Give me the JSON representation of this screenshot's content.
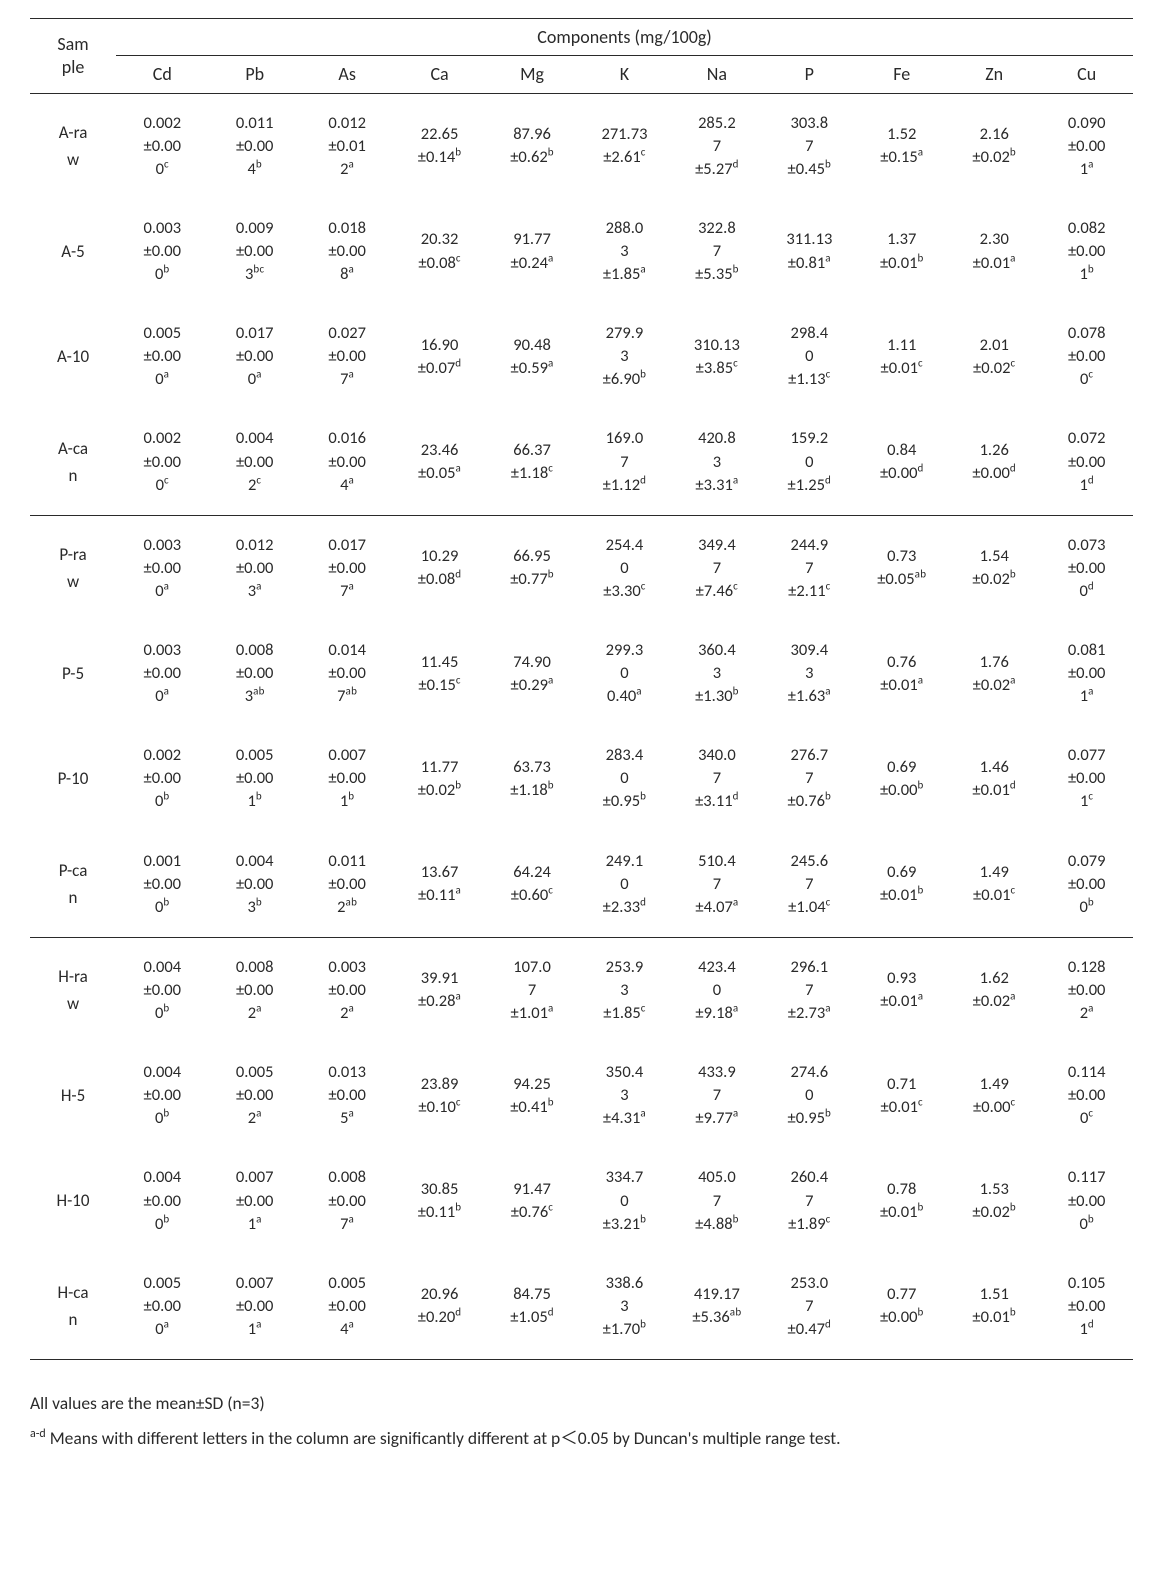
{
  "table": {
    "header": {
      "group_label": "Components (mg/100g)",
      "sample_label": "Sam\nple"
    },
    "columns": [
      "Cd",
      "Pb",
      "As",
      "Ca",
      "Mg",
      "K",
      "Na",
      "P",
      "Fe",
      "Zn",
      "Cu"
    ],
    "groups": [
      {
        "rows": [
          {
            "sample": "A-ra\nw",
            "cells": [
              {
                "v": "0.002",
                "e": "±0.00\n0",
                "s": "c"
              },
              {
                "v": "0.011",
                "e": "±0.00\n4",
                "s": "b"
              },
              {
                "v": "0.012",
                "e": "±0.01\n2",
                "s": "a"
              },
              {
                "v": "22.65",
                "e": "±0.14",
                "s": "b"
              },
              {
                "v": "87.96",
                "e": "±0.62",
                "s": "b"
              },
              {
                "v": "271.73",
                "e": "±2.61",
                "s": "c"
              },
              {
                "v": "285.2\n7",
                "e": "±5.27",
                "s": "d"
              },
              {
                "v": "303.8\n7",
                "e": "±0.45",
                "s": "b"
              },
              {
                "v": "1.52",
                "e": "±0.15",
                "s": "a"
              },
              {
                "v": "2.16",
                "e": "±0.02",
                "s": "b"
              },
              {
                "v": "0.090",
                "e": "±0.00\n1",
                "s": "a"
              }
            ]
          },
          {
            "sample": "A-5",
            "cells": [
              {
                "v": "0.003",
                "e": "±0.00\n0",
                "s": "b"
              },
              {
                "v": "0.009",
                "e": "±0.00\n3",
                "s": "bc"
              },
              {
                "v": "0.018",
                "e": "±0.00\n8",
                "s": "a"
              },
              {
                "v": "20.32",
                "e": "±0.08",
                "s": "c"
              },
              {
                "v": "91.77",
                "e": "±0.24",
                "s": "a"
              },
              {
                "v": "288.0\n3",
                "e": "±1.85",
                "s": "a"
              },
              {
                "v": "322.8\n7",
                "e": "±5.35",
                "s": "b"
              },
              {
                "v": "311.13",
                "e": "±0.81",
                "s": "a"
              },
              {
                "v": "1.37",
                "e": "±0.01",
                "s": "b"
              },
              {
                "v": "2.30",
                "e": "±0.01",
                "s": "a"
              },
              {
                "v": "0.082",
                "e": "±0.00\n1",
                "s": "b"
              }
            ]
          },
          {
            "sample": "A-10",
            "cells": [
              {
                "v": "0.005",
                "e": "±0.00\n0",
                "s": "a"
              },
              {
                "v": "0.017",
                "e": "±0.00\n0",
                "s": "a"
              },
              {
                "v": "0.027",
                "e": "±0.00\n7",
                "s": "a"
              },
              {
                "v": "16.90",
                "e": "±0.07",
                "s": "d"
              },
              {
                "v": "90.48",
                "e": "±0.59",
                "s": "a"
              },
              {
                "v": "279.9\n3",
                "e": "±6.90",
                "s": "b"
              },
              {
                "v": "310.13",
                "e": "±3.85",
                "s": "c"
              },
              {
                "v": "298.4\n0",
                "e": "±1.13",
                "s": "c"
              },
              {
                "v": "1.11",
                "e": "±0.01",
                "s": "c"
              },
              {
                "v": "2.01",
                "e": "±0.02",
                "s": "c"
              },
              {
                "v": "0.078",
                "e": "±0.00\n0",
                "s": "c"
              }
            ]
          },
          {
            "sample": "A-ca\nn",
            "cells": [
              {
                "v": "0.002",
                "e": "±0.00\n0",
                "s": "c"
              },
              {
                "v": "0.004",
                "e": "±0.00\n2",
                "s": "c"
              },
              {
                "v": "0.016",
                "e": "±0.00\n4",
                "s": "a"
              },
              {
                "v": "23.46",
                "e": "±0.05",
                "s": "a"
              },
              {
                "v": "66.37",
                "e": "±1.18",
                "s": "c"
              },
              {
                "v": "169.0\n7",
                "e": "±1.12",
                "s": "d"
              },
              {
                "v": "420.8\n3",
                "e": "±3.31",
                "s": "a"
              },
              {
                "v": "159.2\n0",
                "e": "±1.25",
                "s": "d"
              },
              {
                "v": "0.84",
                "e": "±0.00",
                "s": "d"
              },
              {
                "v": "1.26",
                "e": "±0.00",
                "s": "d"
              },
              {
                "v": "0.072",
                "e": "±0.00\n1",
                "s": "d"
              }
            ]
          }
        ]
      },
      {
        "rows": [
          {
            "sample": "P-ra\nw",
            "cells": [
              {
                "v": "0.003",
                "e": "±0.00\n0",
                "s": "a"
              },
              {
                "v": "0.012",
                "e": "±0.00\n3",
                "s": "a"
              },
              {
                "v": "0.017",
                "e": "±0.00\n7",
                "s": "a"
              },
              {
                "v": "10.29",
                "e": "±0.08",
                "s": "d"
              },
              {
                "v": "66.95",
                "e": "±0.77",
                "s": "b"
              },
              {
                "v": "254.4\n0",
                "e": "±3.30",
                "s": "c"
              },
              {
                "v": "349.4\n7",
                "e": "±7.46",
                "s": "c"
              },
              {
                "v": "244.9\n7",
                "e": "±2.11",
                "s": "c"
              },
              {
                "v": "0.73",
                "e": "±0.05",
                "s": "ab"
              },
              {
                "v": "1.54",
                "e": "±0.02",
                "s": "b"
              },
              {
                "v": "0.073",
                "e": "±0.00\n0",
                "s": "d"
              }
            ]
          },
          {
            "sample": "P-5",
            "cells": [
              {
                "v": "0.003",
                "e": "±0.00\n0",
                "s": "a"
              },
              {
                "v": "0.008",
                "e": "±0.00\n3",
                "s": "ab"
              },
              {
                "v": "0.014",
                "e": "±0.00\n7",
                "s": "ab"
              },
              {
                "v": "11.45",
                "e": "±0.15",
                "s": "c"
              },
              {
                "v": "74.90",
                "e": "±0.29",
                "s": "a"
              },
              {
                "v": "299.3\n0",
                "e": "0.40",
                "s": "a"
              },
              {
                "v": "360.4\n3",
                "e": "±1.30",
                "s": "b"
              },
              {
                "v": "309.4\n3",
                "e": "±1.63",
                "s": "a"
              },
              {
                "v": "0.76",
                "e": "±0.01",
                "s": "a"
              },
              {
                "v": "1.76",
                "e": "±0.02",
                "s": "a"
              },
              {
                "v": "0.081",
                "e": "±0.00\n1",
                "s": "a"
              }
            ]
          },
          {
            "sample": "P-10",
            "cells": [
              {
                "v": "0.002",
                "e": "±0.00\n0",
                "s": "b"
              },
              {
                "v": "0.005",
                "e": "±0.00\n1",
                "s": "b"
              },
              {
                "v": "0.007",
                "e": "±0.00\n1",
                "s": "b"
              },
              {
                "v": "11.77",
                "e": "±0.02",
                "s": "b"
              },
              {
                "v": "63.73",
                "e": "±1.18",
                "s": "b"
              },
              {
                "v": "283.4\n0",
                "e": "±0.95",
                "s": "b"
              },
              {
                "v": "340.0\n7",
                "e": "±3.11",
                "s": "d"
              },
              {
                "v": "276.7\n7",
                "e": "±0.76",
                "s": "b"
              },
              {
                "v": "0.69",
                "e": "±0.00",
                "s": "b"
              },
              {
                "v": "1.46",
                "e": "±0.01",
                "s": "d"
              },
              {
                "v": "0.077",
                "e": "±0.00\n1",
                "s": "c"
              }
            ]
          },
          {
            "sample": "P-ca\nn",
            "cells": [
              {
                "v": "0.001",
                "e": "±0.00\n0",
                "s": "b"
              },
              {
                "v": "0.004",
                "e": "±0.00\n3",
                "s": "b"
              },
              {
                "v": "0.011",
                "e": "±0.00\n2",
                "s": "ab"
              },
              {
                "v": "13.67",
                "e": "±0.11",
                "s": "a"
              },
              {
                "v": "64.24",
                "e": "±0.60",
                "s": "c"
              },
              {
                "v": "249.1\n0",
                "e": "±2.33",
                "s": "d"
              },
              {
                "v": "510.4\n7",
                "e": "±4.07",
                "s": "a"
              },
              {
                "v": "245.6\n7",
                "e": "±1.04",
                "s": "c"
              },
              {
                "v": "0.69",
                "e": "±0.01",
                "s": "b"
              },
              {
                "v": "1.49",
                "e": "±0.01",
                "s": "c"
              },
              {
                "v": "0.079",
                "e": "±0.00\n0",
                "s": "b"
              }
            ]
          }
        ]
      },
      {
        "rows": [
          {
            "sample": "H-ra\nw",
            "cells": [
              {
                "v": "0.004",
                "e": "±0.00\n0",
                "s": "b"
              },
              {
                "v": "0.008",
                "e": "±0.00\n2",
                "s": "a"
              },
              {
                "v": "0.003",
                "e": "±0.00\n2",
                "s": "a"
              },
              {
                "v": "39.91",
                "e": "±0.28",
                "s": "a"
              },
              {
                "v": "107.0\n7",
                "e": "±1.01",
                "s": "a"
              },
              {
                "v": "253.9\n3",
                "e": "±1.85",
                "s": "c"
              },
              {
                "v": "423.4\n0",
                "e": "±9.18",
                "s": "a"
              },
              {
                "v": "296.1\n7",
                "e": "±2.73",
                "s": "a"
              },
              {
                "v": "0.93",
                "e": "±0.01",
                "s": "a"
              },
              {
                "v": "1.62",
                "e": "±0.02",
                "s": "a"
              },
              {
                "v": "0.128",
                "e": "±0.00\n2",
                "s": "a"
              }
            ]
          },
          {
            "sample": "H-5",
            "cells": [
              {
                "v": "0.004",
                "e": "±0.00\n0",
                "s": "b"
              },
              {
                "v": "0.005",
                "e": "±0.00\n2",
                "s": "a"
              },
              {
                "v": "0.013",
                "e": "±0.00\n5",
                "s": "a"
              },
              {
                "v": "23.89",
                "e": "±0.10",
                "s": "c"
              },
              {
                "v": "94.25",
                "e": "±0.41",
                "s": "b"
              },
              {
                "v": "350.4\n3",
                "e": "±4.31",
                "s": "a"
              },
              {
                "v": "433.9\n7",
                "e": "±9.77",
                "s": "a"
              },
              {
                "v": "274.6\n0",
                "e": "±0.95",
                "s": "b"
              },
              {
                "v": "0.71",
                "e": "±0.01",
                "s": "c"
              },
              {
                "v": "1.49",
                "e": "±0.00",
                "s": "c"
              },
              {
                "v": "0.114",
                "e": "±0.00\n0",
                "s": "c"
              }
            ]
          },
          {
            "sample": "H-10",
            "cells": [
              {
                "v": "0.004",
                "e": "±0.00\n0",
                "s": "b"
              },
              {
                "v": "0.007",
                "e": "±0.00\n1",
                "s": "a"
              },
              {
                "v": "0.008",
                "e": "±0.00\n7",
                "s": "a"
              },
              {
                "v": "30.85",
                "e": "±0.11",
                "s": "b"
              },
              {
                "v": "91.47",
                "e": "±0.76",
                "s": "c"
              },
              {
                "v": "334.7\n0",
                "e": "±3.21",
                "s": "b"
              },
              {
                "v": "405.0\n7",
                "e": "±4.88",
                "s": "b"
              },
              {
                "v": "260.4\n7",
                "e": "±1.89",
                "s": "c"
              },
              {
                "v": "0.78",
                "e": "±0.01",
                "s": "b"
              },
              {
                "v": "1.53",
                "e": "±0.02",
                "s": "b"
              },
              {
                "v": "0.117",
                "e": "±0.00\n0",
                "s": "b"
              }
            ]
          },
          {
            "sample": "H-ca\nn",
            "cells": [
              {
                "v": "0.005",
                "e": "±0.00\n0",
                "s": "a"
              },
              {
                "v": "0.007",
                "e": "±0.00\n1",
                "s": "a"
              },
              {
                "v": "0.005",
                "e": "±0.00\n4",
                "s": "a"
              },
              {
                "v": "20.96",
                "e": "±0.20",
                "s": "d"
              },
              {
                "v": "84.75",
                "e": "±1.05",
                "s": "d"
              },
              {
                "v": "338.6\n3",
                "e": "±1.70",
                "s": "b"
              },
              {
                "v": "419.17",
                "e": "±5.36",
                "s": "ab"
              },
              {
                "v": "253.0\n7",
                "e": "±0.47",
                "s": "d"
              },
              {
                "v": "0.77",
                "e": "±0.00",
                "s": "b"
              },
              {
                "v": "1.51",
                "e": "±0.01",
                "s": "b"
              },
              {
                "v": "0.105",
                "e": "±0.00\n1",
                "s": "d"
              }
            ]
          }
        ]
      }
    ]
  },
  "footnotes": {
    "line1": "All values are the mean±SD (n=3)",
    "line2_sup": "a-d",
    "line2": " Means with different letters in the column are significantly different at p＜0.05 by Duncan's multiple range test."
  }
}
